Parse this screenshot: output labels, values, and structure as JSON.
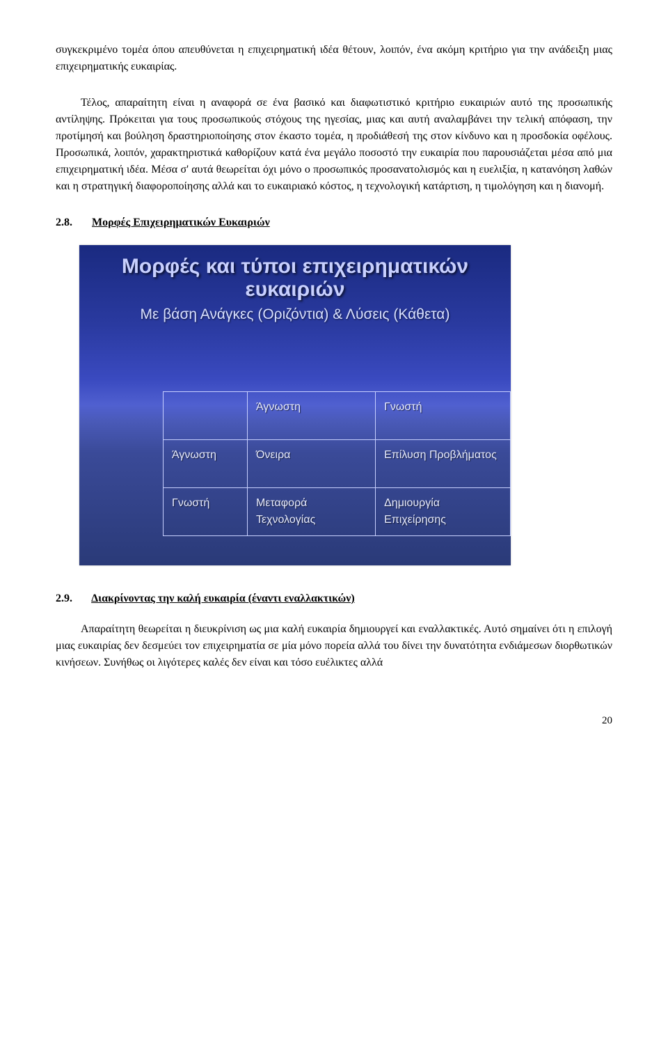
{
  "para1": "συγκεκριμένο τομέα όπου απευθύνεται η επιχειρηματική ιδέα θέτουν, λοιπόν, ένα ακόμη κριτήριο για την ανάδειξη μιας επιχειρηματικής ευκαιρίας.",
  "para2": "Τέλος, απαραίτητη είναι η αναφορά σε ένα βασικό και διαφωτιστικό κριτήριο ευκαιριών αυτό της προσωπικής αντίληψης. Πρόκειται για τους προσωπικούς στόχους της ηγεσίας, μιας και αυτή αναλαμβάνει την τελική απόφαση, την προτίμησή και βούληση δραστηριοποίησης στον έκαστο τομέα, η προδιάθεσή της στον κίνδυνο και η προσδοκία οφέλους. Προσωπικά, λοιπόν, χαρακτηριστικά καθορίζουν κατά ένα μεγάλο ποσοστό την ευκαιρία που παρουσιάζεται μέσα από μια επιχειρηματική ιδέα. Μέσα σ' αυτά θεωρείται όχι μόνο ο προσωπικός προσανατολισμός και η ευελιξία, η κατανόηση λαθών και η στρατηγική διαφοροποίησης αλλά και το ευκαιριακό κόστος, η τεχνολογική κατάρτιση, η τιμολόγηση και η διανομή.",
  "section28": {
    "num": "2.8.",
    "title": "Μορφές Επιχειρηματικών Ευκαιριών"
  },
  "slide": {
    "title_l1": "Μορφές και τύποι επιχειρηματικών",
    "title_l2": "ευκαιριών",
    "subtitle": "Με βάση Ανάγκες (Οριζόντια) & Λύσεις (Κάθετα)",
    "table": {
      "r0": {
        "c1": "Άγνωστη",
        "c2": "Γνωστή"
      },
      "r1": {
        "c0": "Άγνωστη",
        "c1": "Όνειρα",
        "c2": "Επίλυση Προβλήματος"
      },
      "r2": {
        "c0": "Γνωστή",
        "c1": "Μεταφορά Τεχνολογίας",
        "c2": "Δημιουργία Επιχείρησης"
      }
    }
  },
  "section29": {
    "num": "2.9.",
    "title": "Διακρίνοντας την καλή ευκαιρία (έναντι εναλλακτικών)"
  },
  "para3": "Απαραίτητη θεωρείται η διευκρίνιση ως μια καλή ευκαιρία δημιουργεί και εναλλακτικές. Αυτό σημαίνει ότι η επιλογή μιας ευκαιρίας δεν δεσμεύει τον επιχειρηματία σε μία μόνο πορεία αλλά του δίνει την δυνατότητα ενδιάμεσων διορθωτικών κινήσεων. Συνήθως οι λιγότερες καλές δεν είναι και τόσο ευέλικτες αλλά",
  "page": "20"
}
